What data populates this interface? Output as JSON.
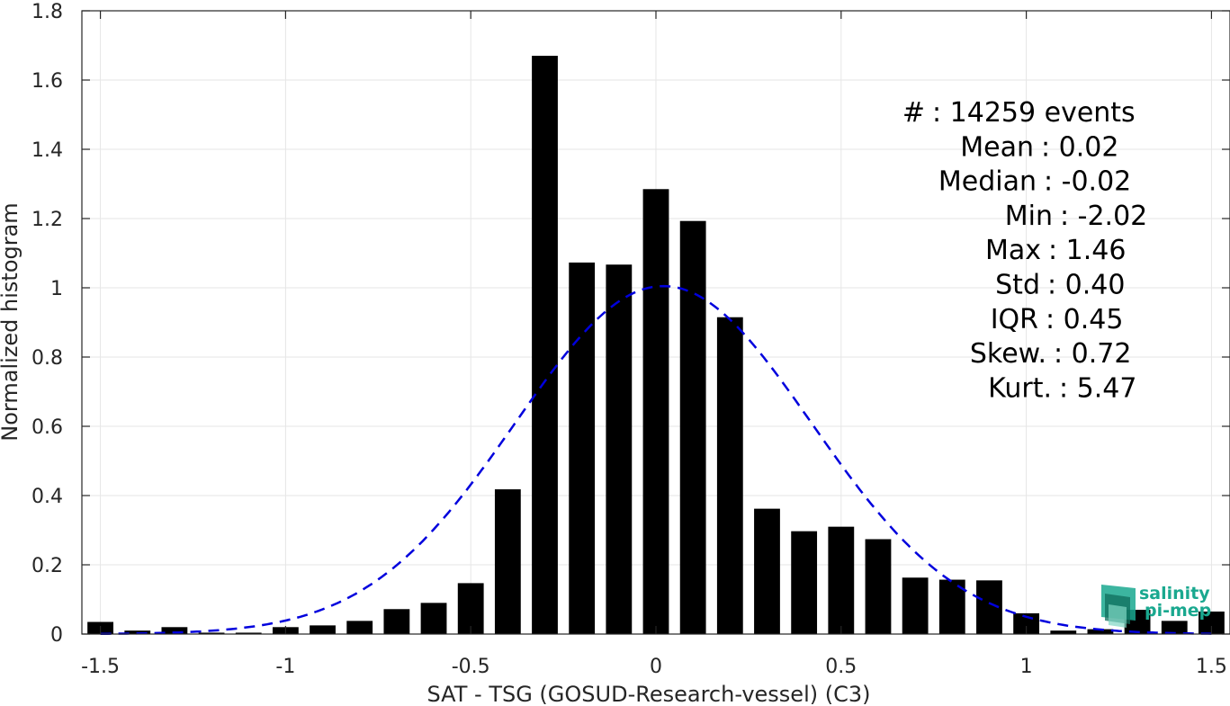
{
  "chart_data": {
    "type": "bar",
    "xlabel": "SAT - TSG (GOSUD-Research-vessel) (C3)",
    "ylabel": "Normalized histogram",
    "xlim": [
      -1.55,
      1.55
    ],
    "ylim": [
      0,
      1.8
    ],
    "grid": true,
    "bar_width": 0.07,
    "x_ticks": [
      -1.5,
      -1,
      -0.5,
      0,
      0.5,
      1,
      1.5
    ],
    "x_tick_labels": [
      "-1.5",
      "-1",
      "-0.5",
      "0",
      "0.5",
      "1",
      "1.5"
    ],
    "y_ticks": [
      0,
      0.2,
      0.4,
      0.6,
      0.8,
      1,
      1.2,
      1.4,
      1.6,
      1.8
    ],
    "y_tick_labels": [
      "0",
      "0.2",
      "0.4",
      "0.6",
      "0.8",
      "1",
      "1.2",
      "1.4",
      "1.6",
      "1.8"
    ],
    "bars": {
      "color": "#000000",
      "x": [
        -1.5,
        -1.4,
        -1.3,
        -1.2,
        -1.1,
        -1.0,
        -0.9,
        -0.8,
        -0.7,
        -0.6,
        -0.5,
        -0.4,
        -0.3,
        -0.2,
        -0.1,
        0.0,
        0.1,
        0.2,
        0.3,
        0.4,
        0.5,
        0.6,
        0.7,
        0.8,
        0.9,
        1.0,
        1.1,
        1.2,
        1.3,
        1.4,
        1.5
      ],
      "values": [
        0.035,
        0.01,
        0.02,
        0.004,
        0.004,
        0.02,
        0.025,
        0.038,
        0.072,
        0.09,
        0.147,
        0.418,
        1.67,
        1.073,
        1.067,
        1.285,
        1.193,
        0.915,
        0.362,
        0.297,
        0.31,
        0.274,
        0.163,
        0.157,
        0.155,
        0.06,
        0.01,
        0.014,
        0.07,
        0.038,
        0.065
      ]
    },
    "fit": {
      "style": "dashed",
      "color": "#0000dd",
      "mean": 0.02,
      "std": 0.4,
      "peak": 1.005,
      "x_range": [
        -1.5,
        1.5
      ]
    },
    "stats": [
      {
        "label": "#  ",
        "value": "14259 events"
      },
      {
        "label": "Mean",
        "value": "0.02"
      },
      {
        "label": "Median",
        "value": "-0.02"
      },
      {
        "label": "Min",
        "value": "-2.02"
      },
      {
        "label": "Max",
        "value": "1.46"
      },
      {
        "label": "Std",
        "value": "0.40"
      },
      {
        "label": "IQR",
        "value": "0.45"
      },
      {
        "label": "Skew.",
        "value": "0.72"
      },
      {
        "label": "Kurt.",
        "value": "5.47"
      }
    ]
  },
  "logo": {
    "line1": "salinity",
    "line2": "pi-mep",
    "color": "#1aa88f"
  }
}
